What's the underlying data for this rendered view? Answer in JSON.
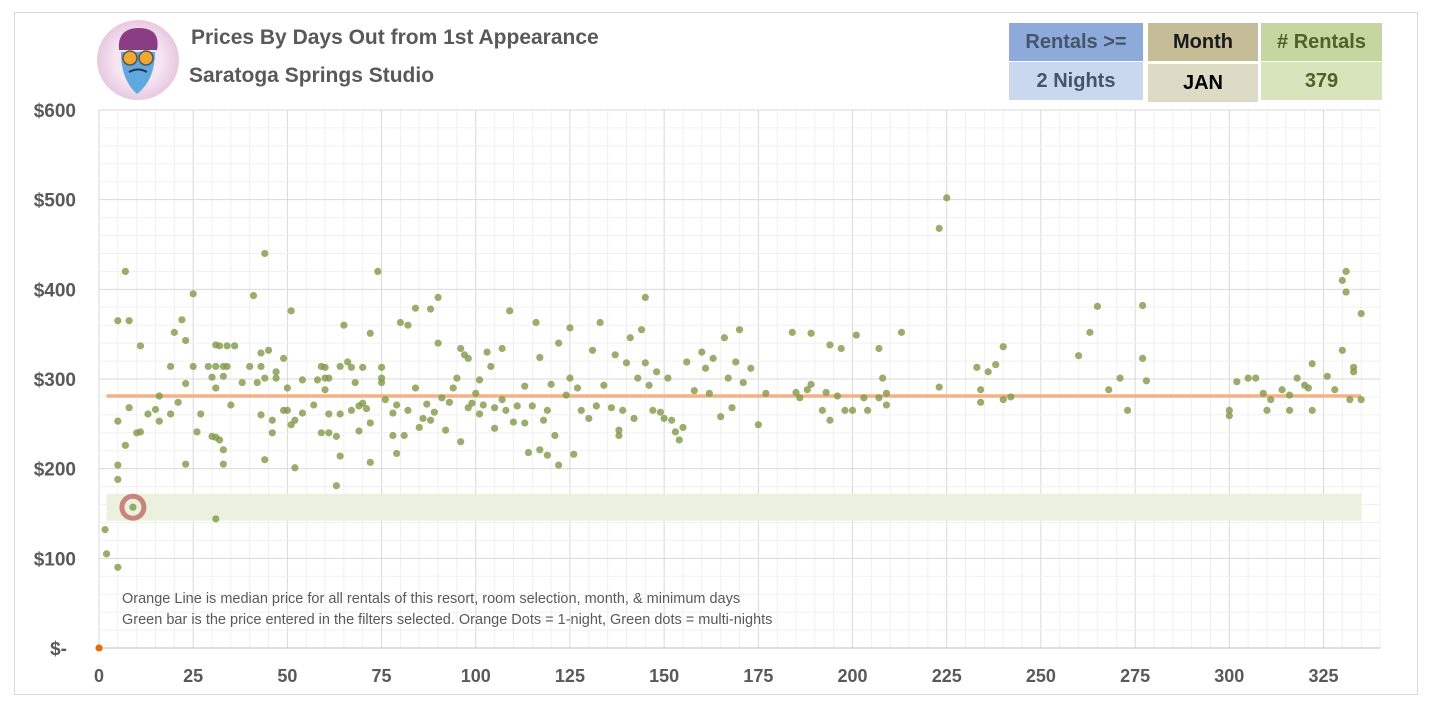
{
  "header": {
    "title": "Prices By Days Out from 1st Appearance",
    "subtitle": "Saratoga Springs Studio",
    "filters": [
      {
        "label": "Rentals >=",
        "value": "2 Nights"
      },
      {
        "label": "Month",
        "value": "JAN"
      },
      {
        "label": "# Rentals",
        "value": "379"
      }
    ],
    "colors": {
      "rentals_head": "#8eaadb",
      "rentals_val": "#c9d7ef",
      "month_head": "#c4bd97",
      "month_val": "#dddac6",
      "count_head": "#c5d6a0",
      "count_val": "#d8e4bc"
    }
  },
  "annotations": [
    "Orange Line is median price for all rentals of this resort, room selection, month, & minimum days",
    "Green bar is the price entered in the filters selected. Orange Dots = 1-night, Green dots = multi-nights"
  ],
  "chart_data": {
    "type": "scatter",
    "title": "Prices By Days Out from 1st Appearance",
    "xlabel": "",
    "ylabel": "",
    "xlim": [
      0,
      340
    ],
    "ylim": [
      0,
      600
    ],
    "xticks": [
      "0",
      "25",
      "50",
      "75",
      "100",
      "125",
      "150",
      "175",
      "200",
      "225",
      "250",
      "275",
      "300",
      "325"
    ],
    "yticks": [
      "$-",
      "$100",
      "$200",
      "$300",
      "$400",
      "$500",
      "$600"
    ],
    "median_price": 281,
    "price_band": [
      142,
      172
    ],
    "highlight_point": [
      9,
      157
    ],
    "colors": {
      "multi": "#7f9a48",
      "single": "#e46c0a",
      "median": "#f4b183",
      "band": "#ebf1de",
      "highlight": "#c9857b"
    },
    "series": [
      {
        "name": "1-night",
        "points": [
          [
            0,
            0
          ]
        ]
      },
      {
        "name": "multi-nights",
        "points": [
          [
            1.6,
            132
          ],
          [
            2,
            105
          ],
          [
            5,
            90
          ],
          [
            5,
            365
          ],
          [
            5,
            253
          ],
          [
            5,
            204
          ],
          [
            5,
            188
          ],
          [
            7,
            226
          ],
          [
            7,
            420
          ],
          [
            8,
            268
          ],
          [
            8,
            365
          ],
          [
            9,
            157
          ],
          [
            10,
            240
          ],
          [
            11,
            241
          ],
          [
            11,
            337
          ],
          [
            13,
            261
          ],
          [
            15,
            266
          ],
          [
            16,
            281
          ],
          [
            16,
            253
          ],
          [
            19,
            314
          ],
          [
            19,
            261
          ],
          [
            20,
            352
          ],
          [
            21,
            274
          ],
          [
            22,
            366
          ],
          [
            23,
            205
          ],
          [
            23,
            295
          ],
          [
            23,
            343
          ],
          [
            25,
            395
          ],
          [
            25,
            314
          ],
          [
            26,
            241
          ],
          [
            27,
            261
          ],
          [
            29,
            314
          ],
          [
            30,
            236
          ],
          [
            30,
            302
          ],
          [
            31,
            144
          ],
          [
            31,
            338
          ],
          [
            31,
            314
          ],
          [
            31,
            290
          ],
          [
            31,
            235
          ],
          [
            32,
            232
          ],
          [
            32,
            337
          ],
          [
            33,
            314
          ],
          [
            33,
            221
          ],
          [
            33,
            205
          ],
          [
            33,
            303
          ],
          [
            34,
            337
          ],
          [
            34,
            314
          ],
          [
            35,
            271
          ],
          [
            36,
            337
          ],
          [
            38,
            296
          ],
          [
            40,
            314
          ],
          [
            41,
            393
          ],
          [
            42,
            296
          ],
          [
            43,
            314
          ],
          [
            43,
            329
          ],
          [
            43,
            260
          ],
          [
            44,
            210
          ],
          [
            44,
            301
          ],
          [
            44,
            440
          ],
          [
            45,
            332
          ],
          [
            46,
            254
          ],
          [
            46,
            240
          ],
          [
            47,
            301
          ],
          [
            47,
            308
          ],
          [
            49,
            323
          ],
          [
            49,
            265
          ],
          [
            50,
            290
          ],
          [
            50,
            265
          ],
          [
            51,
            249
          ],
          [
            51,
            376
          ],
          [
            52,
            201
          ],
          [
            52,
            254
          ],
          [
            54,
            299
          ],
          [
            54,
            262
          ],
          [
            57,
            271
          ],
          [
            58,
            299
          ],
          [
            59,
            314
          ],
          [
            59,
            240
          ],
          [
            60,
            288
          ],
          [
            60,
            301
          ],
          [
            60,
            313
          ],
          [
            61,
            261
          ],
          [
            61,
            240
          ],
          [
            61,
            301
          ],
          [
            63,
            236
          ],
          [
            63,
            181
          ],
          [
            64,
            214
          ],
          [
            64,
            261
          ],
          [
            64,
            314
          ],
          [
            65,
            360
          ],
          [
            66,
            319
          ],
          [
            67,
            265
          ],
          [
            67,
            313
          ],
          [
            68,
            296
          ],
          [
            69,
            270
          ],
          [
            69,
            242
          ],
          [
            70,
            313
          ],
          [
            70,
            273
          ],
          [
            71,
            267
          ],
          [
            72,
            351
          ],
          [
            72,
            251
          ],
          [
            72,
            207
          ],
          [
            74,
            420
          ],
          [
            75,
            313
          ],
          [
            75,
            296
          ],
          [
            75,
            301
          ],
          [
            76,
            277
          ],
          [
            78,
            262
          ],
          [
            78,
            237
          ],
          [
            79,
            217
          ],
          [
            79,
            271
          ],
          [
            80,
            363
          ],
          [
            81,
            237
          ],
          [
            82,
            360
          ],
          [
            82,
            265
          ],
          [
            84,
            290
          ],
          [
            84,
            379
          ],
          [
            85,
            246
          ],
          [
            86,
            256
          ],
          [
            87,
            272
          ],
          [
            88,
            378
          ],
          [
            88,
            254
          ],
          [
            89,
            263
          ],
          [
            90,
            391
          ],
          [
            90,
            340
          ],
          [
            91,
            279
          ],
          [
            92,
            243
          ],
          [
            93,
            274
          ],
          [
            94,
            290
          ],
          [
            95,
            301
          ],
          [
            96,
            230
          ],
          [
            96,
            334
          ],
          [
            97,
            327
          ],
          [
            98,
            268
          ],
          [
            98,
            323
          ],
          [
            99,
            273
          ],
          [
            100,
            284
          ],
          [
            101,
            261
          ],
          [
            101,
            299
          ],
          [
            102,
            271
          ],
          [
            103,
            330
          ],
          [
            104,
            314
          ],
          [
            105,
            268
          ],
          [
            105,
            245
          ],
          [
            107,
            277
          ],
          [
            107,
            334
          ],
          [
            108,
            265
          ],
          [
            109,
            376
          ],
          [
            110,
            252
          ],
          [
            111,
            270
          ],
          [
            113,
            292
          ],
          [
            113,
            251
          ],
          [
            114,
            218
          ],
          [
            115,
            270
          ],
          [
            116,
            363
          ],
          [
            117,
            324
          ],
          [
            117,
            221
          ],
          [
            118,
            254
          ],
          [
            119,
            265
          ],
          [
            119,
            215
          ],
          [
            120,
            294
          ],
          [
            121,
            237
          ],
          [
            122,
            340
          ],
          [
            122,
            204
          ],
          [
            124,
            282
          ],
          [
            125,
            357
          ],
          [
            125,
            301
          ],
          [
            126,
            216
          ],
          [
            127,
            290
          ],
          [
            128,
            265
          ],
          [
            130,
            256
          ],
          [
            131,
            332
          ],
          [
            132,
            270
          ],
          [
            133,
            363
          ],
          [
            134,
            293
          ],
          [
            136,
            268
          ],
          [
            137,
            327
          ],
          [
            138,
            237
          ],
          [
            138,
            243
          ],
          [
            139,
            265
          ],
          [
            140,
            318
          ],
          [
            141,
            346
          ],
          [
            142,
            256
          ],
          [
            143,
            301
          ],
          [
            144,
            355
          ],
          [
            145,
            318
          ],
          [
            145,
            391
          ],
          [
            146,
            293
          ],
          [
            147,
            265
          ],
          [
            148,
            308
          ],
          [
            149,
            263
          ],
          [
            150,
            256
          ],
          [
            151,
            301
          ],
          [
            152,
            254
          ],
          [
            153,
            241
          ],
          [
            154,
            232
          ],
          [
            155,
            246
          ],
          [
            156,
            319
          ],
          [
            158,
            287
          ],
          [
            160,
            330
          ],
          [
            161,
            312
          ],
          [
            162,
            284
          ],
          [
            163,
            323
          ],
          [
            165,
            258
          ],
          [
            166,
            346
          ],
          [
            167,
            301
          ],
          [
            168,
            268
          ],
          [
            169,
            319
          ],
          [
            170,
            355
          ],
          [
            171,
            296
          ],
          [
            173,
            312
          ],
          [
            175,
            249
          ],
          [
            177,
            284
          ],
          [
            184,
            352
          ],
          [
            185,
            285
          ],
          [
            186,
            279
          ],
          [
            188,
            288
          ],
          [
            189,
            294
          ],
          [
            189,
            351
          ],
          [
            192,
            265
          ],
          [
            193,
            285
          ],
          [
            194,
            254
          ],
          [
            194,
            338
          ],
          [
            196,
            281
          ],
          [
            197,
            334
          ],
          [
            198,
            265
          ],
          [
            200,
            265
          ],
          [
            201,
            349
          ],
          [
            203,
            279
          ],
          [
            204,
            265
          ],
          [
            207,
            279
          ],
          [
            207,
            334
          ],
          [
            208,
            301
          ],
          [
            209,
            271
          ],
          [
            209,
            284
          ],
          [
            213,
            352
          ],
          [
            223,
            291
          ],
          [
            223,
            468
          ],
          [
            225,
            502
          ],
          [
            233,
            313
          ],
          [
            234,
            274
          ],
          [
            234,
            288
          ],
          [
            236,
            308
          ],
          [
            238,
            316
          ],
          [
            240,
            277
          ],
          [
            240,
            336
          ],
          [
            242,
            280
          ],
          [
            260,
            326
          ],
          [
            263,
            352
          ],
          [
            265,
            381
          ],
          [
            268,
            288
          ],
          [
            271,
            301
          ],
          [
            273,
            265
          ],
          [
            277,
            382
          ],
          [
            277,
            323
          ],
          [
            278,
            298
          ],
          [
            300,
            265
          ],
          [
            300,
            259
          ],
          [
            302,
            297
          ],
          [
            305,
            301
          ],
          [
            307,
            301
          ],
          [
            309,
            284
          ],
          [
            310,
            265
          ],
          [
            311,
            277
          ],
          [
            314,
            288
          ],
          [
            316,
            265
          ],
          [
            316,
            282
          ],
          [
            318,
            301
          ],
          [
            320,
            293
          ],
          [
            321,
            290
          ],
          [
            322,
            265
          ],
          [
            322,
            317
          ],
          [
            326,
            303
          ],
          [
            328,
            288
          ],
          [
            330,
            410
          ],
          [
            330,
            332
          ],
          [
            331,
            420
          ],
          [
            331,
            397
          ],
          [
            332,
            277
          ],
          [
            333,
            313
          ],
          [
            333,
            308
          ],
          [
            335,
            277
          ],
          [
            335,
            373
          ]
        ]
      }
    ]
  }
}
